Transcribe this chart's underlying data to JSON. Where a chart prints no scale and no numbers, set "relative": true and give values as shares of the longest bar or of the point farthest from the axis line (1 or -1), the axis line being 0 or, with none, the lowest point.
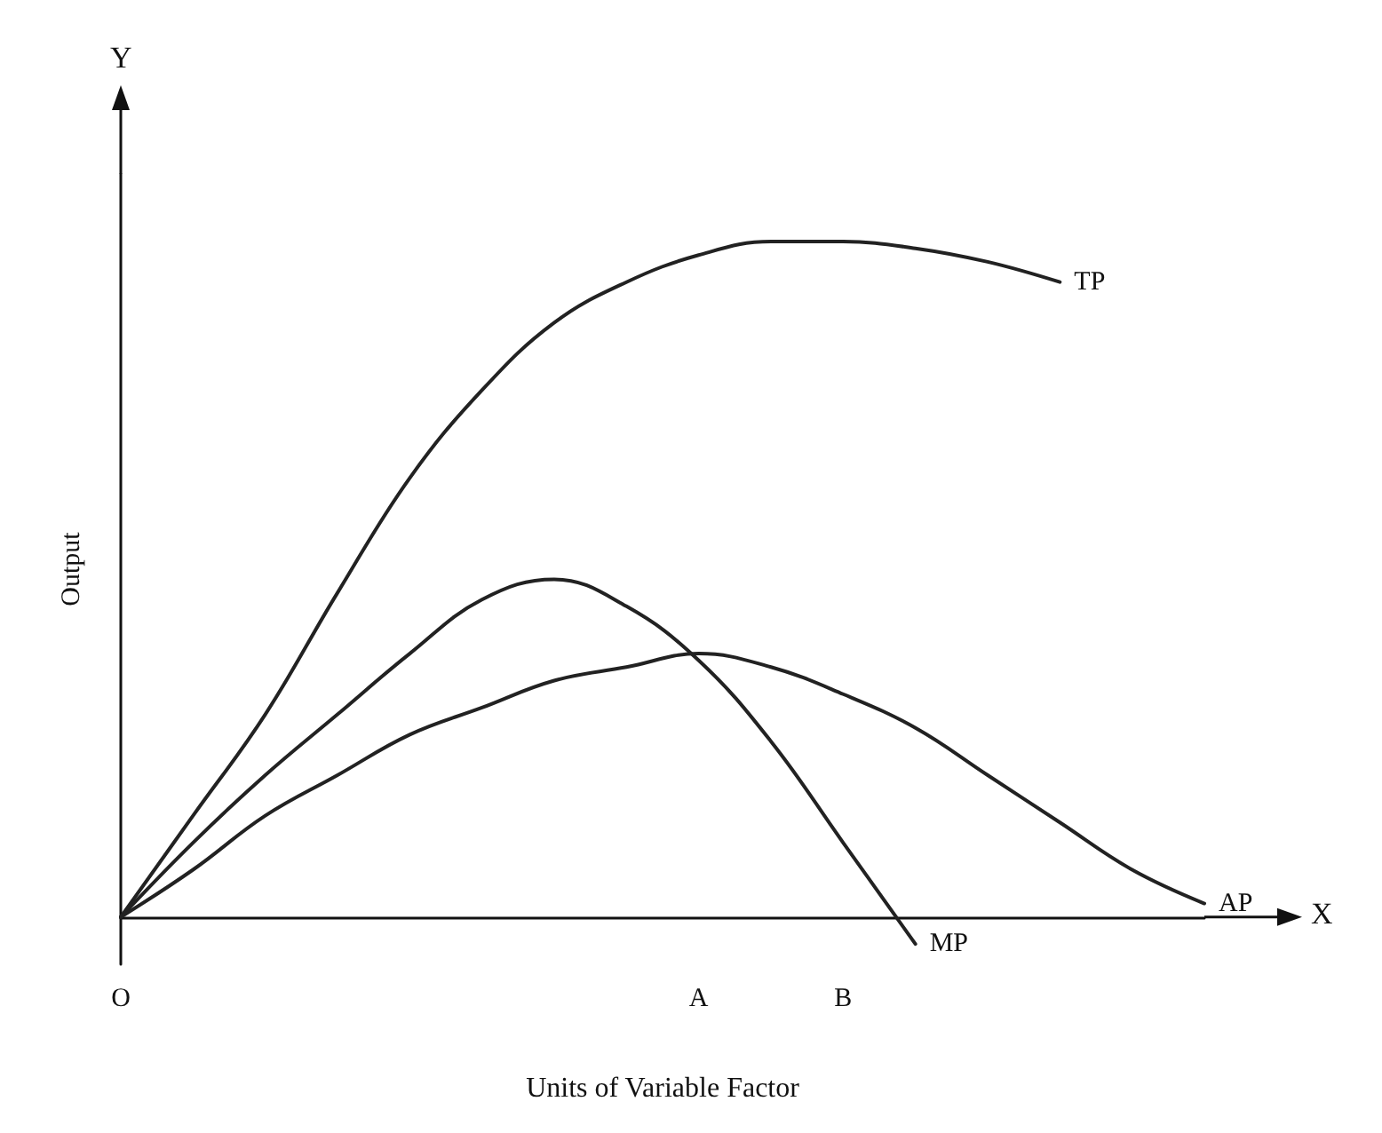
{
  "chart_data": {
    "type": "line",
    "relative": true,
    "xlabel": "Units of Variable Factor",
    "ylabel": "Output",
    "annotations": [
      "X",
      "Y"
    ],
    "marker": "none",
    "line_style": "solid",
    "categories": [
      "O",
      null,
      null,
      null,
      null,
      null,
      null,
      null,
      "A",
      null,
      "B",
      null,
      null,
      null,
      null,
      null
    ],
    "series": [
      {
        "name": "TP",
        "color": "#222222",
        "values": [
          0,
          0.15,
          0.3,
          0.48,
          0.65,
          0.78,
          0.88,
          0.94,
          0.98,
          1.0,
          1.0,
          0.99,
          0.97,
          0.94,
          null,
          null
        ]
      },
      {
        "name": "MP",
        "color": "#222222",
        "values": [
          0,
          0.11,
          0.21,
          0.3,
          0.39,
          0.47,
          0.5,
          0.46,
          0.38,
          0.26,
          0.11,
          -0.04,
          null,
          null,
          null,
          null
        ]
      },
      {
        "name": "AP",
        "color": "#222222",
        "values": [
          0,
          0.07,
          0.15,
          0.21,
          0.27,
          0.31,
          0.35,
          0.37,
          0.39,
          0.37,
          0.33,
          0.28,
          0.21,
          0.14,
          0.07,
          0.02
        ]
      }
    ]
  }
}
